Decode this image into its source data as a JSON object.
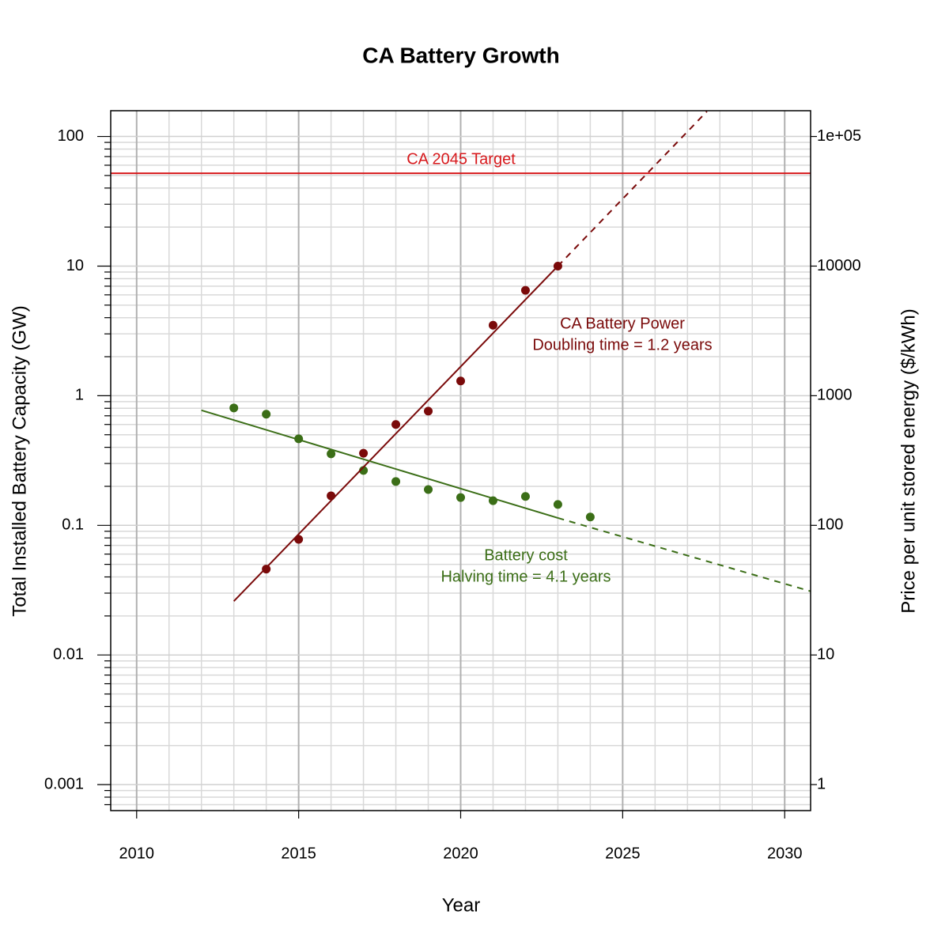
{
  "chart_data": {
    "type": "line",
    "title": "CA Battery Growth",
    "x_label": "Year",
    "y_label": "Total Installed Battery Capacity (GW)",
    "y2_label": "Price per unit stored energy ($/kWh)",
    "xlim": [
      2009.2,
      2030.8
    ],
    "xticks": [
      2010,
      2015,
      2020,
      2025,
      2030
    ],
    "ylim": [
      0.00063,
      158
    ],
    "yticks": [
      0.001,
      0.01,
      0.1,
      1,
      10,
      100
    ],
    "y2lim": [
      0.63,
      158000
    ],
    "y2ticks": [
      1,
      10,
      100,
      1000,
      10000,
      {
        "value": 100000,
        "label": "1e+05"
      }
    ],
    "log_y": true,
    "grid": true,
    "minor_grid": true,
    "hlines": [
      {
        "value": 52,
        "color": "#d7191c"
      }
    ],
    "series": [
      {
        "color": "#7a0a0a",
        "style": "points",
        "x": [
          2014,
          2015,
          2016,
          2017,
          2018,
          2019,
          2020,
          2021,
          2022,
          2023
        ],
        "values": [
          0.046,
          0.078,
          0.169,
          0.36,
          0.6,
          0.76,
          1.3,
          3.5,
          6.5,
          10
        ]
      },
      {
        "color": "#3b6e17",
        "style": "points",
        "axis": "y2",
        "x": [
          2013,
          2014,
          2015,
          2016,
          2017,
          2018,
          2019,
          2020,
          2021,
          2022,
          2023,
          2024
        ],
        "values": [
          805,
          720,
          465,
          356,
          265,
          218,
          189,
          164,
          155,
          167,
          145,
          116
        ]
      },
      {
        "color": "#7a0a0a",
        "style": "solid",
        "x": [
          2013,
          2023
        ],
        "values": [
          0.026,
          10
        ]
      },
      {
        "color": "#7a0a0a",
        "style": "dashed",
        "x": [
          2023,
          2027.6
        ],
        "values": [
          10,
          156
        ]
      },
      {
        "color": "#3b6e17",
        "style": "solid",
        "axis": "y2",
        "x": [
          2012,
          2023
        ],
        "values": [
          772,
          114
        ]
      },
      {
        "color": "#3b6e17",
        "style": "dashed",
        "axis": "y2",
        "x": [
          2023,
          2030.8
        ],
        "values": [
          114,
          31
        ]
      }
    ],
    "annotations": [
      {
        "lines": [
          "CA 2045 Target"
        ],
        "color": "#d7191c"
      },
      {
        "lines": [
          "CA Battery Power",
          "Doubling time = 1.2 years"
        ],
        "color": "#7a0a0a"
      },
      {
        "lines": [
          "Battery cost",
          "Halving time = 4.1 years"
        ],
        "color": "#3b6e17"
      }
    ]
  }
}
